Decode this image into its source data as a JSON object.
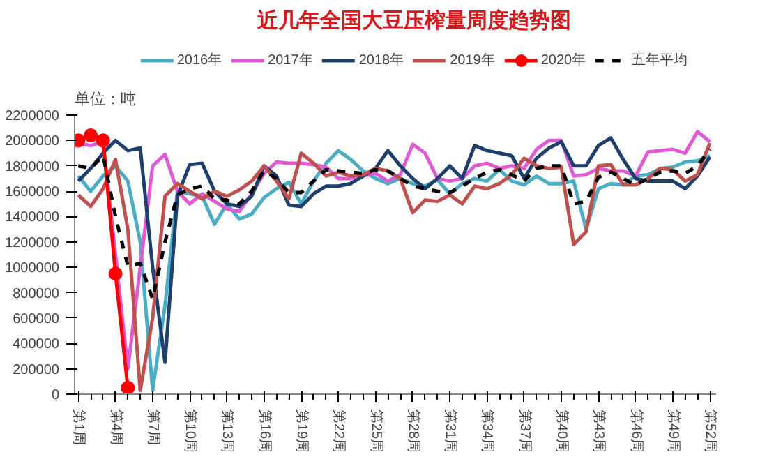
{
  "chart_data": {
    "type": "line",
    "title": "近几年全国大豆压榨量周度趋势图",
    "ylabel": "单位：吨",
    "categories": [
      "第1周",
      null,
      null,
      "第4周",
      null,
      null,
      "第7周",
      null,
      null,
      "第10周",
      null,
      null,
      "第13周",
      null,
      null,
      "第16周",
      null,
      null,
      "第19周",
      null,
      null,
      "第22周",
      null,
      null,
      "第25周",
      null,
      null,
      "第28周",
      null,
      null,
      "第31周",
      null,
      null,
      "第34周",
      null,
      null,
      "第37周",
      null,
      null,
      "第40周",
      null,
      null,
      "第43周",
      null,
      null,
      "第46周",
      null,
      null,
      "第49周",
      null,
      null,
      "第52周"
    ],
    "ylim": [
      0,
      2200000
    ],
    "yticks": [
      0,
      200000,
      400000,
      600000,
      800000,
      1000000,
      1200000,
      1400000,
      1600000,
      1800000,
      2000000,
      2200000
    ],
    "grid": false,
    "legend": "top",
    "series": [
      {
        "name": "2016年",
        "color": "#4bacc6",
        "values": [
          1720000,
          1600000,
          1720000,
          1800000,
          1680000,
          1200000,
          30000,
          700000,
          1600000,
          1580000,
          1560000,
          1340000,
          1500000,
          1380000,
          1420000,
          1550000,
          1620000,
          1670000,
          1500000,
          1680000,
          1820000,
          1920000,
          1850000,
          1760000,
          1700000,
          1660000,
          1700000,
          1660000,
          1640000,
          1690000,
          1580000,
          1660000,
          1700000,
          1680000,
          1770000,
          1680000,
          1650000,
          1720000,
          1660000,
          1660000,
          1680000,
          1300000,
          1620000,
          1660000,
          1650000,
          1720000,
          1730000,
          1780000,
          1790000,
          1830000,
          1840000,
          1880000
        ]
      },
      {
        "name": "2017年",
        "color": "#e15ad5",
        "values": [
          1980000,
          1960000,
          1990000,
          1100000,
          200000,
          1000000,
          1800000,
          1890000,
          1600000,
          1500000,
          1580000,
          1520000,
          1460000,
          1440000,
          1580000,
          1740000,
          1830000,
          1820000,
          1820000,
          1810000,
          1790000,
          1700000,
          1700000,
          1720000,
          1740000,
          1680000,
          1730000,
          1970000,
          1900000,
          1700000,
          1680000,
          1700000,
          1800000,
          1820000,
          1780000,
          1800000,
          1780000,
          1930000,
          2000000,
          2000000,
          1720000,
          1730000,
          1780000,
          1760000,
          1760000,
          1720000,
          1910000,
          1920000,
          1930000,
          1900000,
          2070000,
          1990000
        ]
      },
      {
        "name": "2018年",
        "color": "#1f3f6e",
        "values": [
          1680000,
          1780000,
          1900000,
          2000000,
          1920000,
          1940000,
          1000000,
          250000,
          1560000,
          1810000,
          1820000,
          1600000,
          1500000,
          1480000,
          1560000,
          1800000,
          1720000,
          1490000,
          1480000,
          1580000,
          1640000,
          1640000,
          1660000,
          1720000,
          1780000,
          1920000,
          1800000,
          1700000,
          1620000,
          1700000,
          1800000,
          1700000,
          1960000,
          1920000,
          1900000,
          1880000,
          1700000,
          1860000,
          1940000,
          1990000,
          1800000,
          1800000,
          1960000,
          2020000,
          1850000,
          1700000,
          1680000,
          1680000,
          1680000,
          1620000,
          1720000,
          1870000
        ]
      },
      {
        "name": "2019年",
        "color": "#c0504d",
        "values": [
          1570000,
          1480000,
          1620000,
          1850000,
          1300000,
          30000,
          600000,
          1560000,
          1660000,
          1600000,
          1540000,
          1600000,
          1560000,
          1610000,
          1680000,
          1800000,
          1680000,
          1540000,
          1900000,
          1820000,
          1720000,
          1750000,
          1720000,
          1730000,
          1780000,
          1760000,
          1700000,
          1430000,
          1530000,
          1520000,
          1570000,
          1500000,
          1640000,
          1620000,
          1660000,
          1730000,
          1860000,
          1800000,
          1780000,
          1790000,
          1180000,
          1280000,
          1800000,
          1810000,
          1650000,
          1650000,
          1700000,
          1780000,
          1770000,
          1680000,
          1730000,
          1980000
        ]
      },
      {
        "name": "2020年",
        "color": "#ff0000",
        "marker": "circle",
        "values": [
          2000000,
          2040000,
          2000000,
          950000,
          50000,
          null,
          null,
          null,
          null,
          null,
          null,
          null,
          null,
          null,
          null,
          null,
          null,
          null,
          null,
          null,
          null,
          null,
          null,
          null,
          null,
          null,
          null,
          null,
          null,
          null,
          null,
          null,
          null,
          null,
          null,
          null,
          null,
          null,
          null,
          null,
          null,
          null,
          null,
          null,
          null,
          null,
          null,
          null,
          null,
          null,
          null,
          null
        ]
      },
      {
        "name": "五年平均",
        "color": "#000000",
        "line_style": "dashed",
        "values": [
          1800000,
          1780000,
          1880000,
          1400000,
          1010000,
          1030000,
          750000,
          1200000,
          1570000,
          1620000,
          1640000,
          1540000,
          1530000,
          1500000,
          1600000,
          1760000,
          1700000,
          1590000,
          1590000,
          1680000,
          1770000,
          1760000,
          1750000,
          1740000,
          1770000,
          1760000,
          1700000,
          1640000,
          1620000,
          1600000,
          1590000,
          1640000,
          1700000,
          1750000,
          1770000,
          1730000,
          1680000,
          1780000,
          1800000,
          1800000,
          1500000,
          1520000,
          1710000,
          1750000,
          1700000,
          1650000,
          1700000,
          1750000,
          1760000,
          1740000,
          1800000,
          1930000
        ]
      }
    ]
  }
}
